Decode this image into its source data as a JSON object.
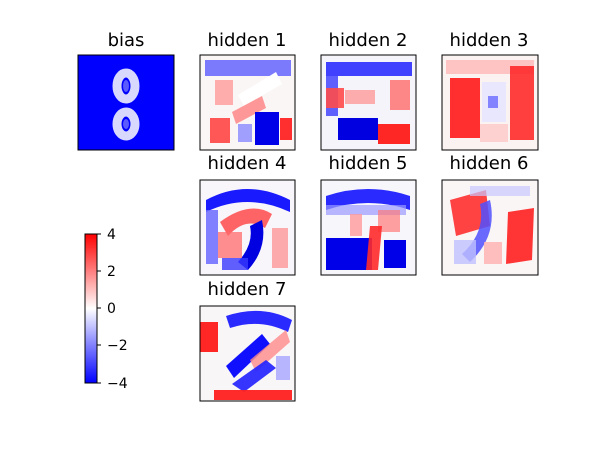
{
  "chart_data": {
    "type": "heatmap",
    "colormap": "bwr",
    "vmin": -4,
    "vmax": 4,
    "colorbar": {
      "ticks": [
        4,
        2,
        0,
        -2,
        -4
      ],
      "tick_labels": [
        "4",
        "2",
        "0",
        "−2",
        "−4"
      ]
    },
    "panels": [
      {
        "title": "bias",
        "description": "uniform strongly negative background with a lighter digit-8 outline"
      },
      {
        "title": "hidden 1",
        "description": "mixed blue/red; red patches on left and lower-right, dark blue block lower-middle"
      },
      {
        "title": "hidden 2",
        "description": "blue bands across top and bottom, red patches left and lower right"
      },
      {
        "title": "hidden 3",
        "description": "large red regions left and right, light center"
      },
      {
        "title": "hidden 4",
        "description": "blue arcs, red diagonal stroke through middle"
      },
      {
        "title": "hidden 5",
        "description": "blue frame and blue block bottom-left, red accents"
      },
      {
        "title": "hidden 6",
        "description": "red blobs upper-left and lower-right, blue center stroke"
      },
      {
        "title": "hidden 7",
        "description": "red left edge and bottom bar, blue diagonal strokes"
      }
    ]
  }
}
